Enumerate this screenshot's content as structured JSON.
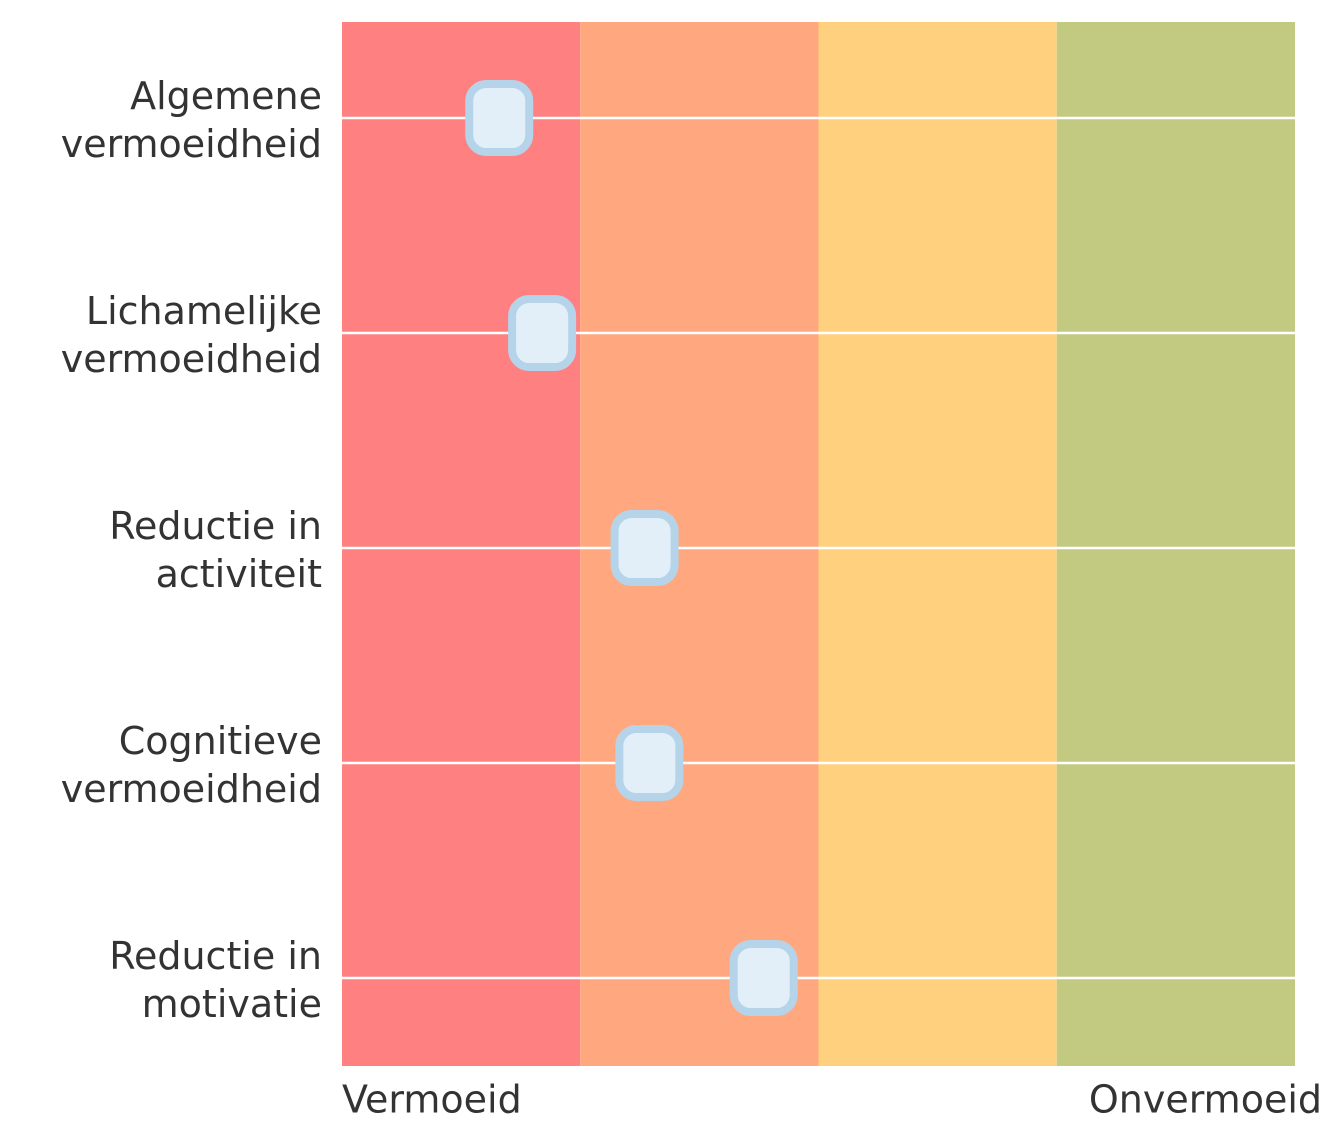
{
  "chart_data": {
    "type": "dot",
    "categories": [
      [
        "Algemene",
        "vermoeidheid"
      ],
      [
        "Lichamelijke",
        "vermoeidheid"
      ],
      [
        "Reductie in",
        "activiteit"
      ],
      [
        "Cognitieve",
        "vermoeidheid"
      ],
      [
        "Reductie in",
        "motivatie"
      ]
    ],
    "values": [
      0.66,
      0.84,
      1.27,
      1.29,
      1.77
    ],
    "xlim": [
      0,
      4
    ],
    "bands": [
      {
        "from": 0,
        "to": 1,
        "color": "#ff8080"
      },
      {
        "from": 1,
        "to": 2,
        "color": "#ffa87f"
      },
      {
        "from": 2,
        "to": 3,
        "color": "#ffd17f"
      },
      {
        "from": 3,
        "to": 4,
        "color": "#c2c981"
      }
    ],
    "axis_start_label": "Vermoeid",
    "axis_end_label": "Onvermoeid",
    "marker_fill": "#e3eff8",
    "marker_stroke": "#b5d4ea"
  }
}
